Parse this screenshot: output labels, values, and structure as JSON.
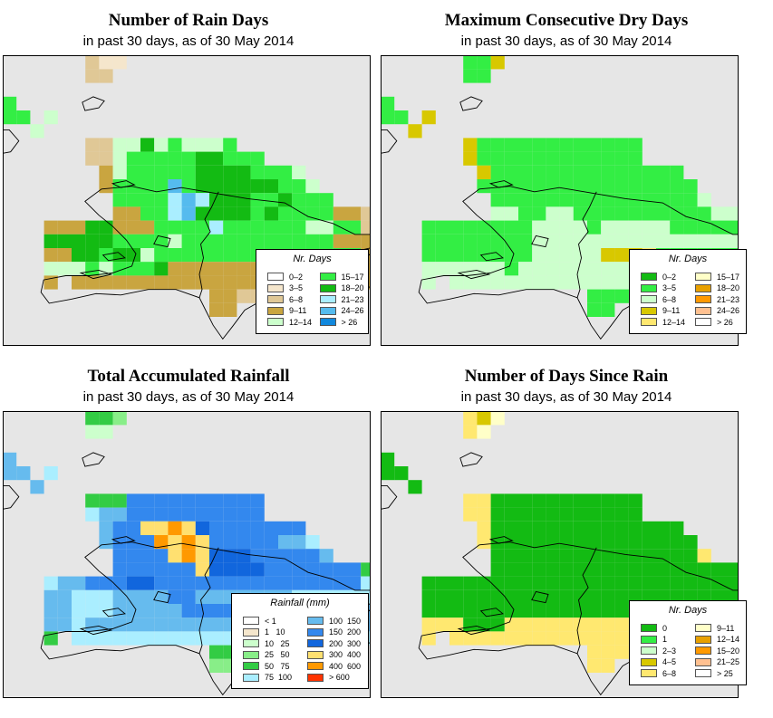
{
  "panels": [
    {
      "id": "rain-days",
      "title": "Number of Rain Days",
      "subtitle": "in past 30 days, as of  30 May 2014",
      "legend_title": "Nr. Days",
      "legend_items": [
        {
          "label": "0–2",
          "color": "#ffffff"
        },
        {
          "label": "3–5",
          "color": "#f5e6cc"
        },
        {
          "label": "6–8",
          "color": "#e0c896"
        },
        {
          "label": "9–11",
          "color": "#c9a540"
        },
        {
          "label": "12–14",
          "color": "#ccffcc"
        },
        {
          "label": "15–17",
          "color": "#33ee44"
        },
        {
          "label": "18–20",
          "color": "#13bb13"
        },
        {
          "label": "21–23",
          "color": "#aaeeff"
        },
        {
          "label": "24–26",
          "color": "#55bbee"
        },
        {
          "label": "> 26",
          "color": "#1188dd"
        }
      ],
      "palette": {
        "1": "#ccffcc",
        "2": "#33ee44",
        "3": "#13bb13",
        "4": "#c9a540",
        "5": "#e0c896",
        "6": "#f5e6cc",
        "7": "#aaeeff",
        "8": "#55bbee"
      },
      "grid_rows": [
        "...................................",
        "......566..........................",
        "......55...........................",
        "...................................",
        "2..........................",
        "22.1.......................",
        "..1...........................",
        "......55113121112................",
        "......5512222233222...........",
        ".......412222233332221.........",
        ".......4222282333333221.......",
        "........2222787333223222......",
        "........44227833332322224455.",
        "...4443344422227222222112255...",
        "...3333322221222222222224444....",
        "...443323312222222222222224554..",
        "...1112122234444444444114444...",
        "...4.44444444444444444244.4.....",
        "...............4455................",
        "...............44..................."
      ]
    },
    {
      "id": "dry-days",
      "title": "Maximum Consecutive Dry Days",
      "subtitle": "in past 30 days, as of  30 May 2014",
      "legend_title": "Nr. Days",
      "legend_items": [
        {
          "label": "0–2",
          "color": "#13bb13"
        },
        {
          "label": "3–5",
          "color": "#33ee44"
        },
        {
          "label": "6–8",
          "color": "#ccffcc"
        },
        {
          "label": "9–11",
          "color": "#d8c800"
        },
        {
          "label": "12–14",
          "color": "#ffe870"
        },
        {
          "label": "15–17",
          "color": "#ffffc8"
        },
        {
          "label": "18–20",
          "color": "#e8a000"
        },
        {
          "label": "21–23",
          "color": "#ff9900"
        },
        {
          "label": "24–26",
          "color": "#ffc090"
        },
        {
          "label": "> 26",
          "color": "#ffffff"
        }
      ],
      "palette": {
        "1": "#ccffcc",
        "2": "#33ee44",
        "3": "#13bb13",
        "4": "#d8c800",
        "5": "#ffe870"
      },
      "grid_rows": [
        "...................................",
        "......224..........................",
        "......22...........................",
        "...................................",
        "2..........................",
        "22.4.......................",
        "..4...........................",
        "......4222222222222................",
        "......4222222222222...........",
        ".......422222222222222.........",
        ".......2222222222222222.......",
        "........2222222222222221......",
        "........11221122222222221145.",
        "...2222222211112111112222214...",
        "...2222222211111111111111111....",
        "...222222221111144452222221111..",
        "...1111112111111111111111111...",
        "...1.11111111111111111111.1.....",
        "...............2222................",
        "...............22..................."
      ]
    },
    {
      "id": "rainfall",
      "title": "Total Accumulated Rainfall",
      "subtitle": "in past 30 days, as of  30 May 2014",
      "legend_title": "Rainfall (mm)",
      "legend_items": [
        {
          "label": "< 1",
          "color": "#ffffff"
        },
        {
          "label": "1   10",
          "color": "#f5e6cc"
        },
        {
          "label": "10   25",
          "color": "#ccffcc"
        },
        {
          "label": "25   50",
          "color": "#88ee88"
        },
        {
          "label": "50   75",
          "color": "#33cc44"
        },
        {
          "label": "75  100",
          "color": "#aaeeff"
        },
        {
          "label": "100  150",
          "color": "#66bbee"
        },
        {
          "label": "150  200",
          "color": "#3388ee"
        },
        {
          "label": "200  300",
          "color": "#1166dd"
        },
        {
          "label": "300  400",
          "color": "#ffe070"
        },
        {
          "label": "400  600",
          "color": "#ff9900"
        },
        {
          "label": "> 600",
          "color": "#ff3300"
        }
      ],
      "palette": {
        "1": "#ccffcc",
        "2": "#88ee88",
        "3": "#33cc44",
        "4": "#aaeeff",
        "5": "#66bbee",
        "6": "#3388ee",
        "7": "#1166dd",
        "8": "#ffe070",
        "9": "#ff9900"
      },
      "grid_rows": [
        "...................................",
        "......332..........................",
        "......11...........................",
        "...................................",
        "5..........................",
        "55.4.......................",
        "..5...........................",
        "......3336666666666................",
        "......4556666666666...........",
        ".......566889876666666.........",
        ".......5666989866666554.......",
        "........6666898777666665......",
        "........66666687777666666633.",
        "...4556667766666666666666643...",
        "...5544455556655555554444443....",
        "...554445555566666666666665433..",
        "...5545555555555555555555555...",
        "...3.44444444444444444344.4.....",
        "...............3311................",
        "...............22..................."
      ]
    },
    {
      "id": "days-since-rain",
      "title": "Number of Days Since Rain",
      "subtitle": "in past 30 days, as of  30 May 2014",
      "legend_title": "Nr. Days",
      "legend_items": [
        {
          "label": "0",
          "color": "#13bb13"
        },
        {
          "label": "1",
          "color": "#33ee44"
        },
        {
          "label": "2–3",
          "color": "#ccffcc"
        },
        {
          "label": "4–5",
          "color": "#d8c800"
        },
        {
          "label": "6–8",
          "color": "#ffe870"
        },
        {
          "label": "9–11",
          "color": "#ffffc8"
        },
        {
          "label": "12–14",
          "color": "#e8a000"
        },
        {
          "label": "15–20",
          "color": "#ff9900"
        },
        {
          "label": "21–25",
          "color": "#ffc090"
        },
        {
          "label": "> 25",
          "color": "#ffffff"
        }
      ],
      "palette": {
        "3": "#13bb13",
        "4": "#d8c800",
        "5": "#ffe870",
        "6": "#ffffc8"
      },
      "grid_rows": [
        "...................................",
        "......546..........................",
        "......56...........................",
        "...................................",
        "3..........................",
        "33.........................",
        "..3...........................",
        "......5533333333333................",
        "......5533333333333...........",
        ".......533333333333333.........",
        ".......5333333333333333.......",
        "........3333333333333335......",
        "........33333333333333333355.",
        "...3333333333333333333333335...",
        "...3333333333333333333333335....",
        "...333333333333333333333333335..",
        "...5553335555555555555555555...",
        "...5.55555555555555555555.5.....",
        "...............5555................",
        "...............55..................."
      ]
    }
  ]
}
